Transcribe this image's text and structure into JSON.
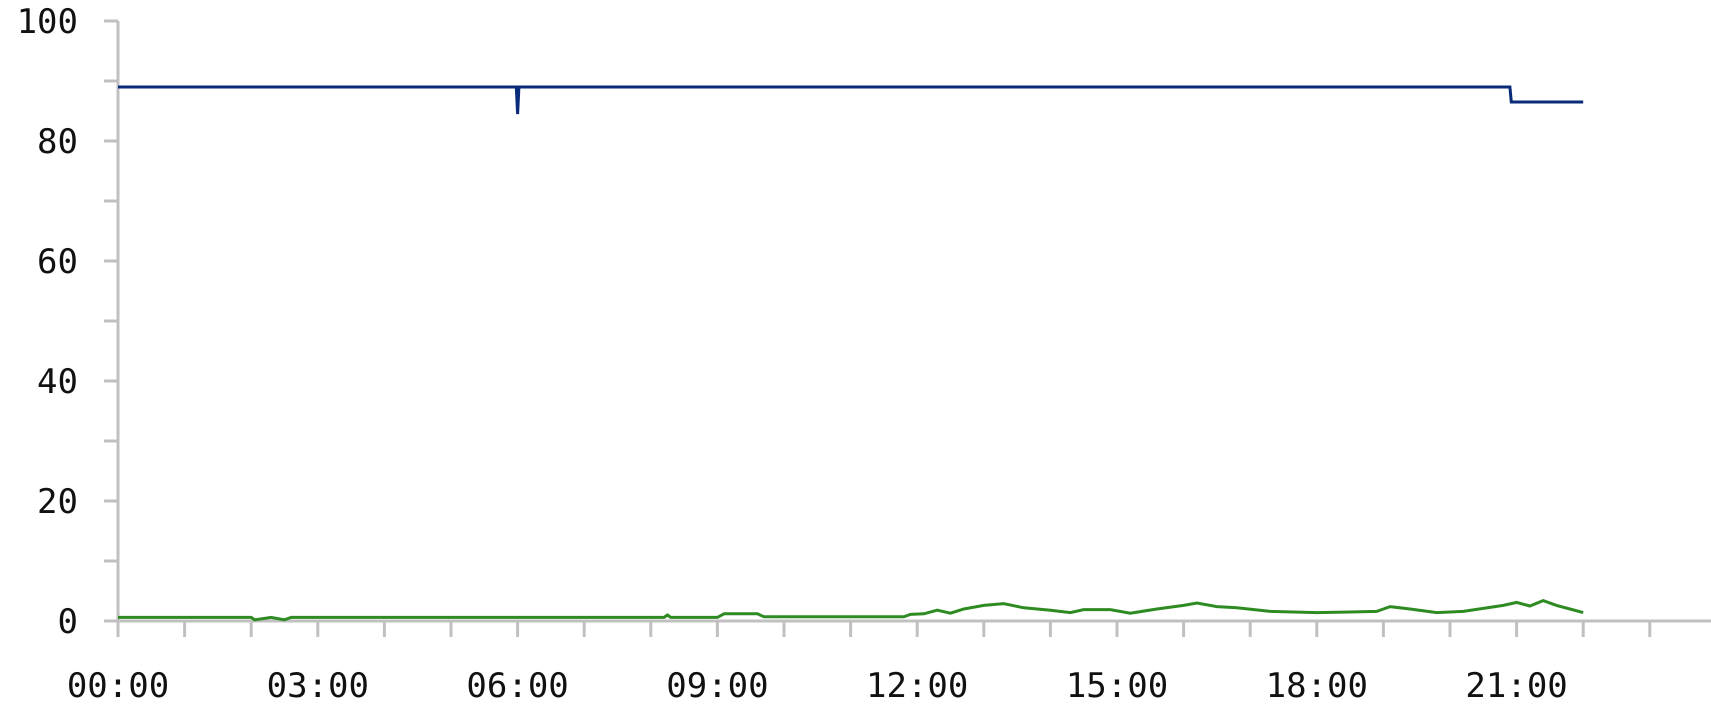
{
  "chart_data": {
    "type": "line",
    "title": "",
    "xlabel": "",
    "ylabel": "",
    "ylim": [
      0,
      100
    ],
    "y_ticks": [
      "0",
      "20",
      "40",
      "60",
      "80",
      "100"
    ],
    "x_tick_labels": [
      "00:00",
      "03:00",
      "06:00",
      "09:00",
      "12:00",
      "15:00",
      "18:00",
      "21:00"
    ],
    "x_range_hours": [
      0,
      24
    ],
    "grid": false,
    "legend": "none",
    "series": [
      {
        "color": "#0a2a7a",
        "points": [
          [
            0.0,
            89
          ],
          [
            5.98,
            89
          ],
          [
            6.0,
            84.5
          ],
          [
            6.02,
            89
          ],
          [
            20.9,
            89
          ],
          [
            20.92,
            86.5
          ],
          [
            22.0,
            86.5
          ]
        ]
      },
      {
        "color": "#2e8b22",
        "points": [
          [
            0.0,
            0.6
          ],
          [
            2.0,
            0.6
          ],
          [
            2.05,
            0.2
          ],
          [
            2.3,
            0.6
          ],
          [
            2.5,
            0.2
          ],
          [
            2.6,
            0.6
          ],
          [
            8.2,
            0.6
          ],
          [
            8.25,
            1.0
          ],
          [
            8.3,
            0.6
          ],
          [
            9.0,
            0.6
          ],
          [
            9.1,
            1.2
          ],
          [
            9.6,
            1.2
          ],
          [
            9.7,
            0.7
          ],
          [
            11.8,
            0.7
          ],
          [
            11.9,
            1.1
          ],
          [
            12.1,
            1.2
          ],
          [
            12.3,
            1.8
          ],
          [
            12.5,
            1.3
          ],
          [
            12.7,
            2.0
          ],
          [
            13.0,
            2.6
          ],
          [
            13.3,
            2.9
          ],
          [
            13.6,
            2.2
          ],
          [
            14.0,
            1.8
          ],
          [
            14.3,
            1.4
          ],
          [
            14.5,
            1.9
          ],
          [
            14.9,
            1.9
          ],
          [
            15.2,
            1.3
          ],
          [
            15.6,
            2.0
          ],
          [
            16.0,
            2.6
          ],
          [
            16.2,
            3.0
          ],
          [
            16.5,
            2.4
          ],
          [
            16.8,
            2.2
          ],
          [
            17.3,
            1.6
          ],
          [
            18.0,
            1.4
          ],
          [
            18.5,
            1.5
          ],
          [
            18.9,
            1.6
          ],
          [
            19.1,
            2.4
          ],
          [
            19.4,
            2.0
          ],
          [
            19.8,
            1.4
          ],
          [
            20.2,
            1.6
          ],
          [
            20.5,
            2.1
          ],
          [
            20.8,
            2.6
          ],
          [
            21.0,
            3.1
          ],
          [
            21.2,
            2.5
          ],
          [
            21.4,
            3.4
          ],
          [
            21.6,
            2.6
          ],
          [
            21.8,
            2.0
          ],
          [
            22.0,
            1.4
          ]
        ]
      }
    ]
  }
}
